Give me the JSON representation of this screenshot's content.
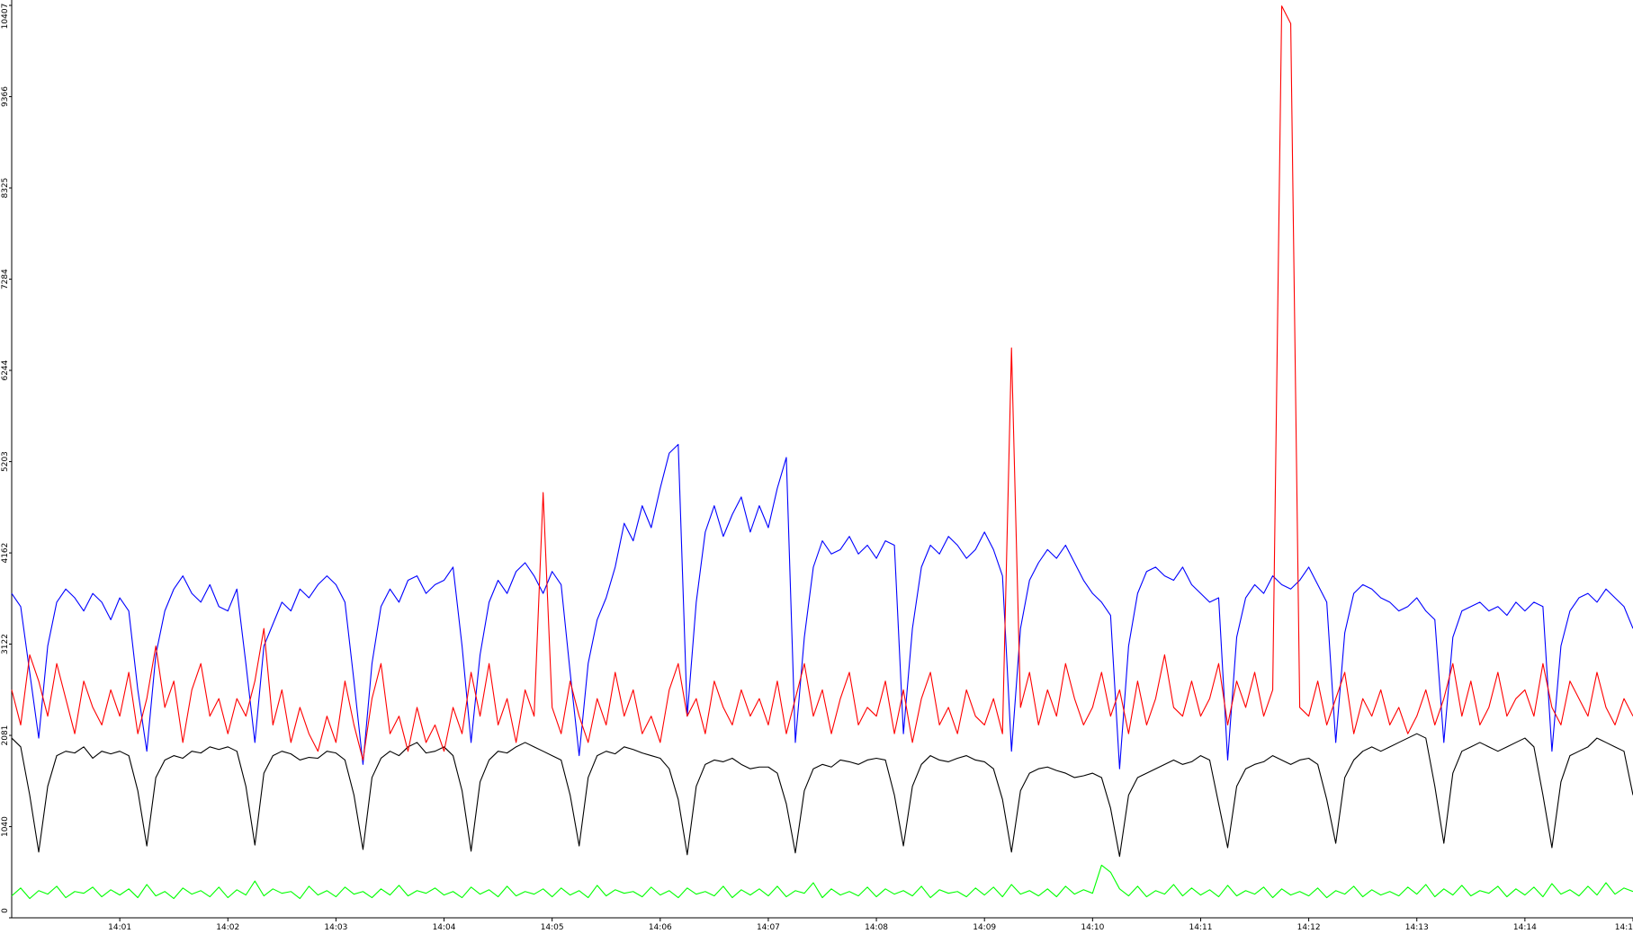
{
  "chart_data": {
    "type": "line",
    "categories": [
      null,
      null,
      null,
      null,
      null,
      null,
      null,
      null,
      null,
      null,
      null,
      null,
      "14:01",
      null,
      null,
      null,
      null,
      null,
      null,
      null,
      null,
      null,
      null,
      null,
      "14:02",
      null,
      null,
      null,
      null,
      null,
      null,
      null,
      null,
      null,
      null,
      null,
      "14:03",
      null,
      null,
      null,
      null,
      null,
      null,
      null,
      null,
      null,
      null,
      null,
      "14:04",
      null,
      null,
      null,
      null,
      null,
      null,
      null,
      null,
      null,
      null,
      null,
      "14:05",
      null,
      null,
      null,
      null,
      null,
      null,
      null,
      null,
      null,
      null,
      null,
      "14:06",
      null,
      null,
      null,
      null,
      null,
      null,
      null,
      null,
      null,
      null,
      null,
      "14:07",
      null,
      null,
      null,
      null,
      null,
      null,
      null,
      null,
      null,
      null,
      null,
      "14:08",
      null,
      null,
      null,
      null,
      null,
      null,
      null,
      null,
      null,
      null,
      null,
      "14:09",
      null,
      null,
      null,
      null,
      null,
      null,
      null,
      null,
      null,
      null,
      null,
      "14:10",
      null,
      null,
      null,
      null,
      null,
      null,
      null,
      null,
      null,
      null,
      null,
      "14:11",
      null,
      null,
      null,
      null,
      null,
      null,
      null,
      null,
      null,
      null,
      null,
      "14:12",
      null,
      null,
      null,
      null,
      null,
      null,
      null,
      null,
      null,
      null,
      null,
      "14:13",
      null,
      null,
      null,
      null,
      null,
      null,
      null,
      null,
      null,
      null,
      null,
      "14:14",
      null,
      null,
      null,
      null,
      null,
      null,
      null,
      null,
      null,
      null,
      null,
      "14:1"
    ],
    "series": [
      {
        "color": "#000000",
        "values": [
          2050,
          1950,
          1400,
          750,
          1500,
          1850,
          1900,
          1880,
          1950,
          1820,
          1900,
          1870,
          1900,
          1850,
          1450,
          820,
          1600,
          1800,
          1850,
          1820,
          1900,
          1880,
          1950,
          1920,
          1950,
          1900,
          1500,
          830,
          1650,
          1850,
          1900,
          1870,
          1800,
          1830,
          1820,
          1900,
          1880,
          1800,
          1400,
          780,
          1600,
          1820,
          1900,
          1850,
          1950,
          2000,
          1880,
          1900,
          1950,
          1850,
          1450,
          760,
          1550,
          1800,
          1900,
          1880,
          1950,
          2000,
          1950,
          1900,
          1850,
          1800,
          1400,
          820,
          1600,
          1850,
          1900,
          1870,
          1950,
          1920,
          1880,
          1850,
          1820,
          1700,
          1350,
          720,
          1500,
          1750,
          1800,
          1780,
          1820,
          1750,
          1700,
          1720,
          1720,
          1650,
          1300,
          740,
          1450,
          1700,
          1750,
          1720,
          1800,
          1780,
          1750,
          1800,
          1820,
          1800,
          1400,
          820,
          1500,
          1750,
          1850,
          1800,
          1780,
          1820,
          1850,
          1800,
          1780,
          1700,
          1350,
          750,
          1450,
          1650,
          1700,
          1720,
          1680,
          1650,
          1600,
          1620,
          1650,
          1600,
          1250,
          700,
          1400,
          1600,
          1650,
          1700,
          1750,
          1800,
          1750,
          1780,
          1850,
          1800,
          1300,
          800,
          1500,
          1700,
          1750,
          1780,
          1850,
          1800,
          1750,
          1800,
          1820,
          1750,
          1350,
          850,
          1600,
          1800,
          1900,
          1950,
          1900,
          1950,
          2000,
          2050,
          2100,
          2050,
          1500,
          850,
          1650,
          1900,
          1950,
          2000,
          1950,
          1900,
          1950,
          2000,
          2050,
          1950,
          1400,
          800,
          1550,
          1850,
          1900,
          1950,
          2050,
          2000,
          1950,
          1900,
          1400
        ]
      },
      {
        "color": "#0000ff",
        "values": [
          3700,
          3550,
          2800,
          2050,
          3100,
          3600,
          3750,
          3650,
          3500,
          3700,
          3600,
          3400,
          3650,
          3500,
          2600,
          1900,
          3000,
          3500,
          3750,
          3900,
          3700,
          3600,
          3800,
          3550,
          3500,
          3750,
          2900,
          2000,
          3100,
          3350,
          3600,
          3500,
          3750,
          3650,
          3800,
          3900,
          3800,
          3600,
          2700,
          1750,
          2900,
          3550,
          3750,
          3600,
          3850,
          3900,
          3700,
          3800,
          3850,
          4000,
          3100,
          2000,
          3000,
          3600,
          3850,
          3700,
          3950,
          4050,
          3900,
          3700,
          3950,
          3800,
          2800,
          1850,
          2900,
          3400,
          3650,
          4000,
          4500,
          4300,
          4700,
          4450,
          4900,
          5300,
          5400,
          2300,
          3600,
          4400,
          4700,
          4350,
          4600,
          4800,
          4400,
          4700,
          4450,
          4900,
          5250,
          2000,
          3200,
          4000,
          4300,
          4150,
          4200,
          4350,
          4150,
          4250,
          4100,
          4300,
          4250,
          2100,
          3300,
          4000,
          4250,
          4150,
          4350,
          4250,
          4100,
          4200,
          4400,
          4200,
          3900,
          1900,
          3300,
          3850,
          4050,
          4200,
          4100,
          4250,
          4050,
          3850,
          3700,
          3600,
          3450,
          1700,
          3100,
          3700,
          3950,
          4000,
          3900,
          3850,
          4000,
          3800,
          3700,
          3600,
          3650,
          1800,
          3200,
          3650,
          3800,
          3700,
          3900,
          3800,
          3750,
          3850,
          4000,
          3800,
          3600,
          2000,
          3250,
          3700,
          3800,
          3750,
          3650,
          3600,
          3500,
          3550,
          3650,
          3500,
          3400,
          2000,
          3200,
          3500,
          3550,
          3600,
          3500,
          3550,
          3450,
          3600,
          3500,
          3600,
          3550,
          1900,
          3100,
          3500,
          3650,
          3700,
          3600,
          3750,
          3650,
          3550,
          3300
        ]
      },
      {
        "color": "#ff0000",
        "values": [
          2600,
          2200,
          3000,
          2700,
          2300,
          2900,
          2500,
          2100,
          2700,
          2400,
          2200,
          2600,
          2300,
          2800,
          2100,
          2500,
          3100,
          2400,
          2700,
          2000,
          2600,
          2900,
          2300,
          2500,
          2100,
          2500,
          2300,
          2700,
          3300,
          2200,
          2600,
          2000,
          2400,
          2100,
          1900,
          2300,
          2000,
          2700,
          2200,
          1800,
          2500,
          2900,
          2100,
          2300,
          1900,
          2400,
          2000,
          2200,
          1900,
          2400,
          2100,
          2800,
          2300,
          2900,
          2200,
          2500,
          2000,
          2600,
          2300,
          4850,
          2400,
          2100,
          2700,
          2300,
          2000,
          2500,
          2200,
          2800,
          2300,
          2600,
          2100,
          2300,
          2000,
          2600,
          2900,
          2300,
          2500,
          2100,
          2700,
          2400,
          2200,
          2600,
          2300,
          2500,
          2200,
          2700,
          2100,
          2500,
          2900,
          2300,
          2600,
          2100,
          2500,
          2800,
          2200,
          2400,
          2300,
          2700,
          2100,
          2600,
          2000,
          2500,
          2800,
          2200,
          2400,
          2100,
          2600,
          2300,
          2200,
          2500,
          2100,
          6500,
          2400,
          2800,
          2200,
          2600,
          2300,
          2900,
          2500,
          2200,
          2400,
          2800,
          2300,
          2600,
          2100,
          2700,
          2200,
          2500,
          3000,
          2400,
          2300,
          2700,
          2300,
          2500,
          2900,
          2200,
          2700,
          2400,
          2800,
          2300,
          2600,
          10400,
          10200,
          2400,
          2300,
          2700,
          2200,
          2500,
          2800,
          2100,
          2500,
          2300,
          2600,
          2200,
          2400,
          2100,
          2300,
          2600,
          2200,
          2500,
          2900,
          2300,
          2700,
          2200,
          2400,
          2800,
          2300,
          2500,
          2600,
          2300,
          2900,
          2400,
          2200,
          2700,
          2500,
          2300,
          2800,
          2400,
          2200,
          2500,
          2300
        ]
      },
      {
        "color": "#00ff00",
        "values": [
          250,
          340,
          220,
          310,
          270,
          360,
          230,
          300,
          280,
          350,
          240,
          320,
          260,
          330,
          230,
          380,
          250,
          300,
          220,
          340,
          270,
          310,
          240,
          350,
          230,
          320,
          260,
          420,
          250,
          330,
          280,
          300,
          220,
          360,
          260,
          310,
          240,
          350,
          270,
          300,
          230,
          330,
          260,
          370,
          250,
          310,
          280,
          340,
          260,
          300,
          230,
          350,
          270,
          320,
          240,
          360,
          250,
          300,
          270,
          330,
          240,
          340,
          260,
          310,
          230,
          370,
          250,
          320,
          280,
          300,
          240,
          350,
          260,
          310,
          230,
          340,
          270,
          300,
          250,
          360,
          230,
          320,
          260,
          330,
          250,
          360,
          240,
          310,
          280,
          400,
          230,
          330,
          260,
          300,
          250,
          350,
          240,
          330,
          270,
          310,
          250,
          360,
          230,
          320,
          280,
          300,
          240,
          340,
          260,
          350,
          240,
          380,
          270,
          310,
          250,
          330,
          240,
          360,
          270,
          320,
          280,
          600,
          520,
          330,
          250,
          360,
          240,
          310,
          270,
          380,
          250,
          340,
          260,
          320,
          240,
          370,
          250,
          310,
          270,
          350,
          230,
          330,
          260,
          300,
          250,
          340,
          230,
          310,
          270,
          360,
          240,
          320,
          260,
          300,
          250,
          350,
          270,
          380,
          240,
          330,
          260,
          370,
          250,
          310,
          280,
          360,
          240,
          330,
          260,
          350,
          240,
          390,
          270,
          320,
          250,
          360,
          260,
          400,
          270,
          340,
          300
        ]
      }
    ],
    "ylim": [
      0,
      10407
    ],
    "yticks": [
      0,
      1040,
      2081,
      3122,
      4162,
      5203,
      6244,
      7284,
      8325,
      9366,
      10407
    ]
  }
}
